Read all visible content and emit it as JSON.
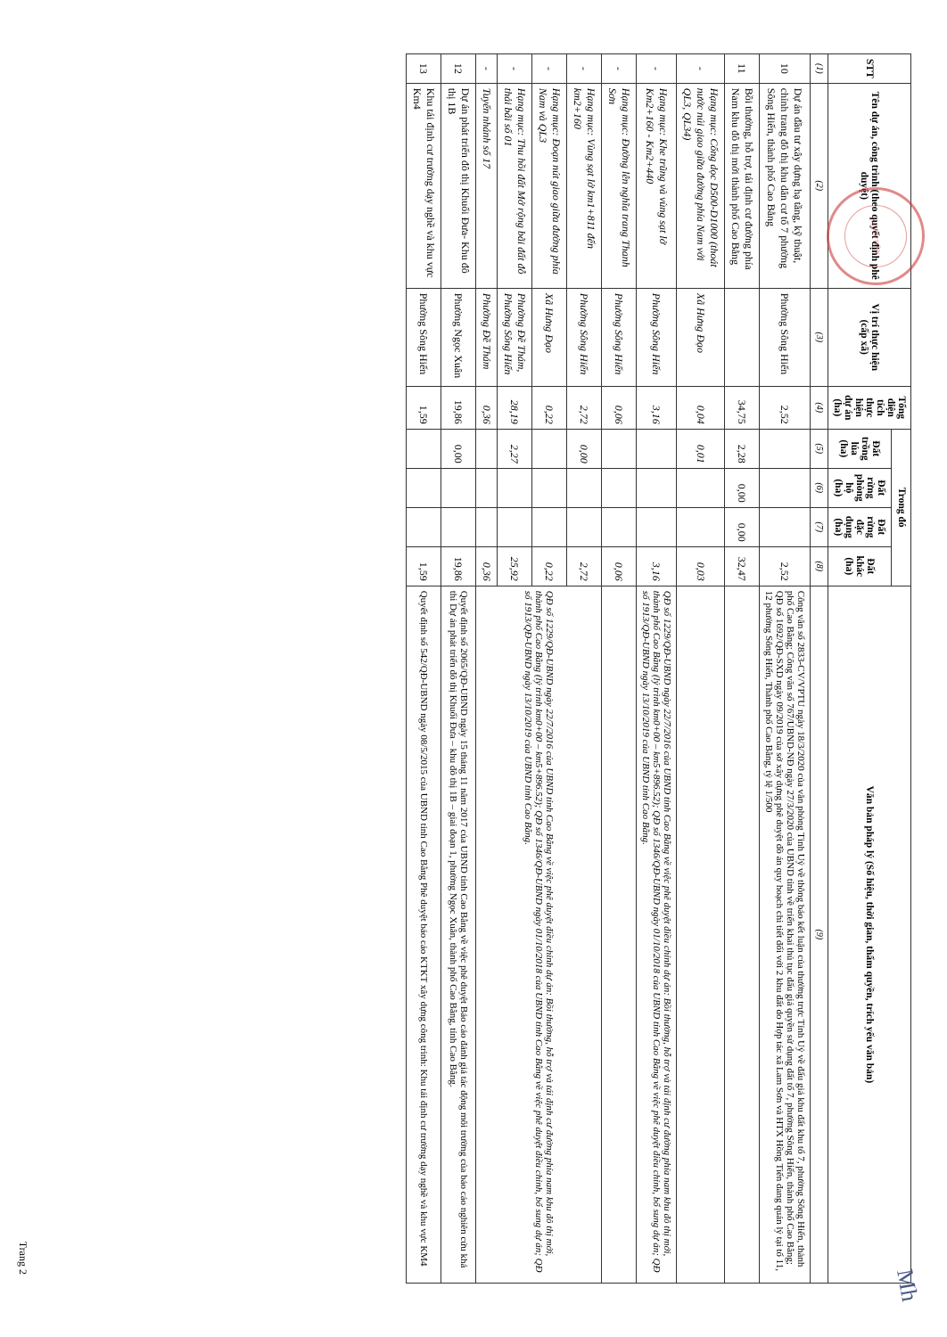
{
  "footer": "Trang 2",
  "stamp_text": "NHÂN DÂN",
  "signature": "Mh",
  "headers": {
    "stt": "STT",
    "name": "Tên dự án, công trình (theo quyết định phê duyệt)",
    "vt": "Vị trí thực hiện (cấp xã)",
    "area": "Tổng diện tích thực hiện dự án (ha)",
    "trong_do": "Trong đó",
    "lua": "Đất trồng lúa (ha)",
    "ph": "Đất rừng phòng hộ (ha)",
    "dd": "Đất rừng đặc dụng (ha)",
    "khac": "Đất khác (ha)",
    "law": "Văn bản pháp lý (Số hiệu, thời gian, thẩm quyền, trích yếu văn bản)",
    "n1": "(1)",
    "n2": "(2)",
    "n3": "(3)",
    "n4": "(4)",
    "n5": "(5)",
    "n6": "(6)",
    "n7": "(7)",
    "n8": "(8)",
    "n9": "(9)"
  },
  "rows": [
    {
      "stt": "10",
      "name": "Dự án đầu tư xây dựng hạ tầng, kỹ thuật, chỉnh trang đô thị khu dân cư tổ 7 phường Sông Hiến, thành phố Cao Bằng",
      "vt": "Phường Sông Hiến",
      "area": "2,52",
      "lua": "",
      "ph": "",
      "dd": "",
      "khac": "2,52",
      "law": "Công văn số 2833-CV/VPTU ngày 18/3/2020 của văn phòng Tỉnh Uỷ về thông báo kết luận của thường trực Tỉnh Uỷ về đấu giá khu đất khu tổ 7, phường Sông Hiến, thành phố Cao Bằng; Công văn số 767/UBND-NĐ ngày 27/3/2020 của UBND tỉnh về triển khai thủ tục đấu giá quyền sử dụng đất tổ 7, phường Sông Hiến, thành phố Cao Bằng; QĐ số 1692/QĐ-SXD ngày 09/2019 của sở xây dựng phê duyệt đồ án quy hoạch chi tiết đối với 2 khu đất do Hợp tác xã Lam Sơn và HTX Hồng Tiến đang quản lý tại tổ 11, 12 phường Sông Hiến, Thành phố Cao Bằng, tỷ lệ 1/500",
      "italic": false
    },
    {
      "stt": "11",
      "name": "Bồi thường, hỗ trợ, tái định cư đường phía Nam khu đô thị mới thành phố Cao Bằng",
      "vt": "",
      "area": "34,75",
      "lua": "2,28",
      "ph": "0,00",
      "dd": "0,00",
      "khac": "32,47",
      "law": "",
      "italic": false
    },
    {
      "stt": "-",
      "name": "Hạng mục: Cống dọc D500-D1000 (thoát nước núi giao giữa đường phía Nam với QL3, QL34)",
      "vt": "Xã Hưng Đạo",
      "area": "0,04",
      "lua": "0,01",
      "ph": "",
      "dd": "",
      "khac": "0,03",
      "law": "",
      "italic": true
    },
    {
      "stt": "-",
      "name": "Hạng mục: Khe trũng và vùng sạt lở Km2+160 - Km2+440",
      "vt": "Phường Sông Hiến",
      "area": "3,16",
      "lua": "",
      "ph": "",
      "dd": "",
      "khac": "3,16",
      "law": "QĐ số 1229/QĐ-UBND ngày 22/7/2016 của UBND tỉnh Cao Bằng về việc phê duyệt điều chỉnh dự án: Bồi thường, hỗ trợ và tái định cư đường phía nam khu đô thị mới, thành phố Cao Bằng (lý trình km0+00 – km5+896.52); QĐ số 1346/QĐ-UBND ngày 01/10/2018 của UBND tỉnh Cao Bằng về việc phê duyệt điều chỉnh, bổ sung dự án; QĐ số 1913/QĐ-UBND ngày 13/10/2019 của UBND tỉnh Cao Bằng.",
      "italic": true
    },
    {
      "stt": "-",
      "name": "Hạng mục: Đường lên nghĩa trang Thanh Sơn",
      "vt": "Phường Sông Hiến",
      "area": "0,06",
      "lua": "",
      "ph": "",
      "dd": "",
      "khac": "0,06",
      "law": "",
      "italic": true
    },
    {
      "stt": "-",
      "name": "Hạng mục: Vùng sạt lở km1+811 đến km2+160",
      "vt": "Phường Sông Hiến",
      "area": "2,72",
      "lua": "0,00",
      "ph": "",
      "dd": "",
      "khac": "2,72",
      "law": "QĐ số 1229/QĐ-UBND ngày 22/7/2016 của UBND tỉnh Cao Bằng về việc phê duyệt điều chỉnh dự án: Bồi thường, hỗ trợ và tái định cư đường phía nam khu đô thị mới, thành phố Cao Bằng (lý trình km0+00 – km5+896.52); QĐ số 1346/QĐ-UBND ngày 01/10/2018 của UBND tỉnh Cao Bằng về việc phê duyệt điều chỉnh, bổ sung dự án; QĐ số 1913/QĐ-UBND ngày 13/10/2019 của UBND tỉnh Cao Bằng.",
      "italic": true,
      "law_rowspan": 4
    },
    {
      "stt": "-",
      "name": "Hạng mục: Đoạn nút giao giữa đường phía Nam và QL3",
      "vt": "Xã Hưng Đạo",
      "area": "0,22",
      "lua": "",
      "ph": "",
      "dd": "",
      "khac": "0,22",
      "law": null,
      "italic": true
    },
    {
      "stt": "-",
      "name": "Hạng mục: Thu hồi đất Mở rộng bãi đất đỗ thải bãi số 01",
      "vt": "Phường Đề Thám, Phường Sông Hiến",
      "area": "28,19",
      "lua": "2,27",
      "ph": "",
      "dd": "",
      "khac": "25,92",
      "law": null,
      "italic": true
    },
    {
      "stt": "-",
      "name": "Tuyến nhánh số 17",
      "vt": "Phường Đề Thám",
      "area": "0,36",
      "lua": "",
      "ph": "",
      "dd": "",
      "khac": "0,36",
      "law": null,
      "italic": true
    },
    {
      "stt": "12",
      "name": "Dự án phát triển đô thị Khuổi Đưa- Khu đô thị 1B",
      "vt": "Phường Ngọc Xuân",
      "area": "19,86",
      "lua": "0,00",
      "ph": "",
      "dd": "",
      "khac": "19,86",
      "law": "Quyết định số 2065/QĐ-UBND ngày 15 tháng 11 năm 2017 của UBND tỉnh Cao Bằng về việc phê duyệt Báo cáo đánh giá tác động môi trường của báo cáo nghiên cứu khả thi Dự án phát triển đô thị Khuổi Đưa – khu đô thị 1B – giai đoạn 1, phường Ngọc Xuân, thành phố Cao Bằng, tỉnh Cao Bằng.",
      "italic": false
    },
    {
      "stt": "13",
      "name": "Khu tái định cư trường dạy nghề và khu vực Km4",
      "vt": "Phường Sông Hiến",
      "area": "1,59",
      "lua": "",
      "ph": "",
      "dd": "",
      "khac": "1,59",
      "law": "Quyết định số 542/QĐ-UBND ngày 08/5/2015 của UBND tỉnh Cao Bằng Phê duyệt báo cáo KTKT xây dựng công trình: Khu tái định cư trường dạy nghề và khu vực KM4",
      "italic": false
    }
  ]
}
